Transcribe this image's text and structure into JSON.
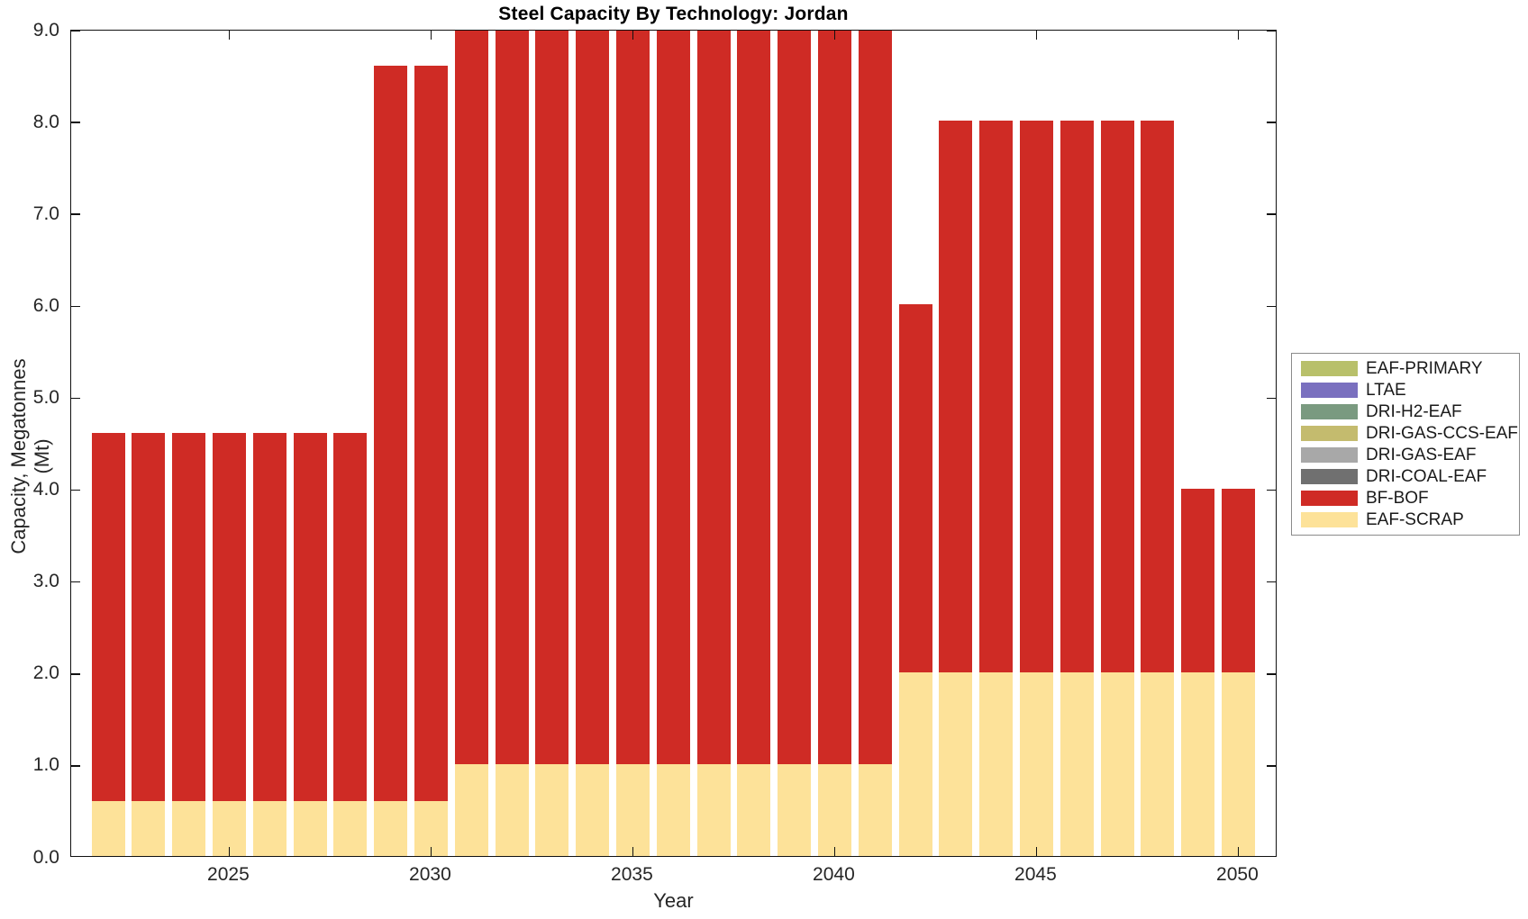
{
  "chart_data": {
    "type": "bar",
    "stacked": true,
    "title": "Steel Capacity By Technology: Jordan",
    "xlabel": "Year",
    "ylabel": "Capacity, Megatonnes (Mt)",
    "ylim": [
      0.0,
      9.0
    ],
    "yticks": [
      "0.0",
      "1.0",
      "2.0",
      "3.0",
      "4.0",
      "5.0",
      "6.0",
      "7.0",
      "8.0",
      "9.0"
    ],
    "xticks": [
      2025,
      2030,
      2035,
      2040,
      2045,
      2050
    ],
    "grid": false,
    "legend_position": "right-outside",
    "x": [
      2022,
      2023,
      2024,
      2025,
      2026,
      2027,
      2028,
      2029,
      2030,
      2031,
      2032,
      2033,
      2034,
      2035,
      2036,
      2037,
      2038,
      2039,
      2040,
      2041,
      2042,
      2043,
      2044,
      2045,
      2046,
      2047,
      2048,
      2049,
      2050
    ],
    "series": [
      {
        "name": "EAF-SCRAP",
        "color": "#fde299",
        "values": [
          0.6,
          0.6,
          0.6,
          0.6,
          0.6,
          0.6,
          0.6,
          0.6,
          0.6,
          1.0,
          1.0,
          1.0,
          1.0,
          1.0,
          1.0,
          1.0,
          1.0,
          1.0,
          1.0,
          1.0,
          2.0,
          2.0,
          2.0,
          2.0,
          2.0,
          2.0,
          2.0,
          2.0,
          2.0
        ]
      },
      {
        "name": "BF-BOF",
        "color": "#cf2b25",
        "values": [
          4.0,
          4.0,
          4.0,
          4.0,
          4.0,
          4.0,
          4.0,
          8.0,
          8.0,
          8.0,
          8.0,
          8.0,
          8.0,
          8.0,
          8.0,
          8.0,
          8.0,
          8.0,
          8.0,
          8.0,
          4.0,
          6.0,
          6.0,
          6.0,
          6.0,
          6.0,
          6.0,
          2.0,
          2.0
        ]
      }
    ],
    "legend": [
      {
        "label": "EAF-PRIMARY",
        "color": "#b8c06a"
      },
      {
        "label": "LTAE",
        "color": "#7a70bf"
      },
      {
        "label": "DRI-H2-EAF",
        "color": "#7a9a80"
      },
      {
        "label": "DRI-GAS-CCS-EAF",
        "color": "#c4bb6e"
      },
      {
        "label": "DRI-GAS-EAF",
        "color": "#a8a8a8"
      },
      {
        "label": "DRI-COAL-EAF",
        "color": "#707070"
      },
      {
        "label": "BF-BOF",
        "color": "#cf2b25"
      },
      {
        "label": "EAF-SCRAP",
        "color": "#fde299"
      }
    ]
  }
}
